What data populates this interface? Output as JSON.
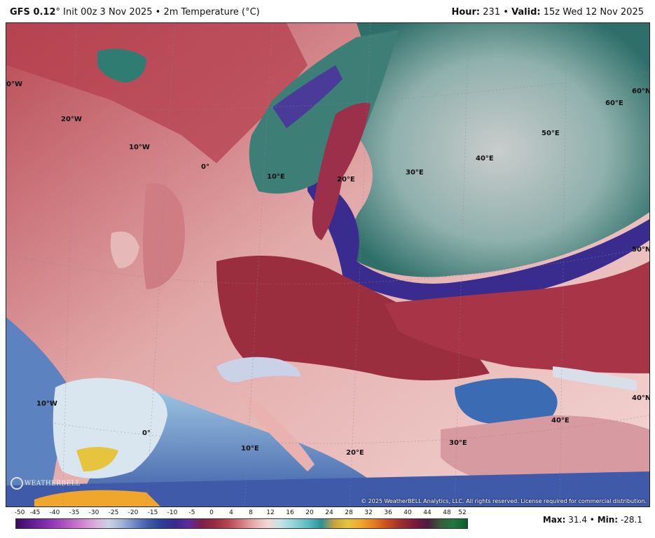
{
  "header": {
    "model": "GFS 0.12",
    "init_text": "° Init 00z 3 Nov 2025 • 2m Temperature (°C)",
    "hour_label": "Hour:",
    "hour_value": "231",
    "sep": "•",
    "valid_label": "Valid:",
    "valid_value": "15z Wed 12 Nov 2025"
  },
  "map": {
    "grid_labels": [
      "0°W",
      "20°W",
      "10°W",
      "0°",
      "10°E",
      "20°E",
      "30°E",
      "40°E",
      "50°E",
      "60°E",
      "60°N",
      "50°N",
      "40°N",
      "10°W",
      "0°",
      "10°E",
      "20°E",
      "30°E",
      "40°E"
    ],
    "copyright": "© 2025 WeatherBELL Analytics, LLC. All rights reserved. License required for commercial distribution.",
    "logo_text": "WEATHERBELL"
  },
  "scale": {
    "ticks": [
      "-50",
      "-45",
      "-40",
      "-35",
      "-30",
      "-25",
      "-20",
      "-15",
      "-10",
      "-5",
      "0",
      "4",
      "8",
      "12",
      "16",
      "20",
      "24",
      "28",
      "32",
      "36",
      "40",
      "44",
      "48",
      "52"
    ],
    "colors": [
      "#3b0a5e",
      "#5a1a8a",
      "#7a2aa8",
      "#9a3fb8",
      "#b85fc4",
      "#cf86cf",
      "#dcaedc",
      "#c9d2e6",
      "#9fb3d6",
      "#6a86c1",
      "#3e5aa8",
      "#2a3f93",
      "#3a2a8a",
      "#5c2d9a",
      "#7d1e4a",
      "#9a2c44",
      "#b7474f",
      "#d27b7e",
      "#e9b1b0",
      "#f3d8d4",
      "#bfe3e6",
      "#8ed1d8",
      "#5bbac3",
      "#2f8f98",
      "#c9a53a",
      "#e6c43e",
      "#f0a52c",
      "#e37a22",
      "#c94c1d",
      "#9e2e2e",
      "#7a1b3a",
      "#4e1b3f",
      "#3a5b3a",
      "#1e7a3e",
      "#0f5a2e"
    ]
  },
  "stats": {
    "max_label": "Max:",
    "max_value": "31.4",
    "sep": "•",
    "min_label": "Min:",
    "min_value": "-28.1"
  }
}
